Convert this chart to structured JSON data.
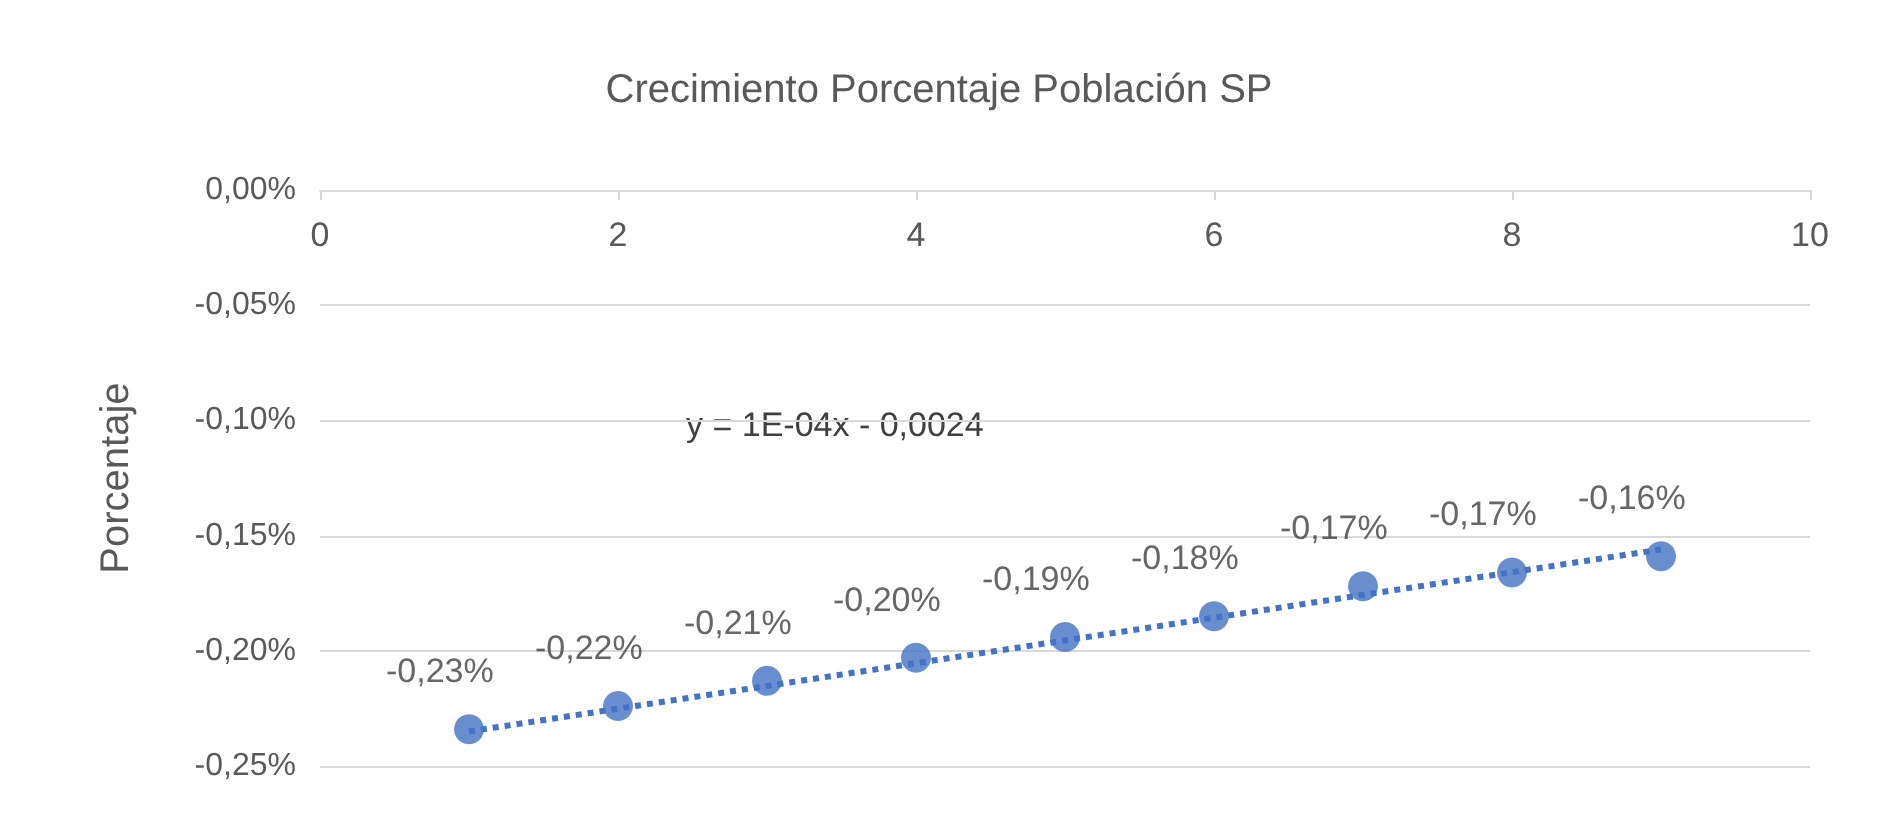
{
  "chart_data": {
    "type": "scatter",
    "title": "Crecimiento Porcentaje Población SP",
    "ylabel": "Porcentaje",
    "annotations": [
      "y = 1E-04x - 0,0024"
    ],
    "series": [
      {
        "type": "scatter",
        "color": "#4472c4",
        "x": [
          1,
          2,
          3,
          4,
          5,
          6,
          7,
          8,
          9
        ],
        "values": [
          -0.234,
          -0.224,
          -0.213,
          -0.203,
          -0.194,
          -0.185,
          -0.172,
          -0.166,
          -0.159
        ],
        "value_labels": [
          "-0,23%",
          "-0,22%",
          "-0,21%",
          "-0,20%",
          "-0,19%",
          "-0,18%",
          "-0,17%",
          "-0,17%",
          "-0,16%"
        ],
        "marker": "circle"
      },
      {
        "type": "line",
        "color": "#4472c4",
        "x": [
          1,
          9
        ],
        "values": [
          -0.235,
          -0.156
        ],
        "line_style": "dotted",
        "marker": "none"
      }
    ],
    "xlim": [
      0,
      10
    ],
    "xticks": [
      0,
      2,
      4,
      6,
      8,
      10
    ],
    "ylim": [
      -0.25,
      0
    ],
    "yticks": [
      {
        "value": -0.25,
        "label": "-0,25%"
      },
      {
        "value": -0.2,
        "label": "-0,20%"
      },
      {
        "value": -0.15,
        "label": "-0,15%"
      },
      {
        "value": -0.1,
        "label": "-0,10%"
      },
      {
        "value": -0.05,
        "label": "-0,05%"
      },
      {
        "value": 0,
        "label": "0,00%"
      }
    ],
    "grid": "y"
  }
}
